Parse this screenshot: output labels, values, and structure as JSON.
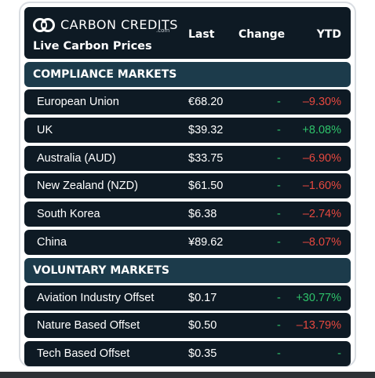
{
  "brand": {
    "logo_text": "CARBON CREDITS",
    "logo_suffix": ".com",
    "subtitle": "Live Carbon Prices"
  },
  "columns": {
    "last": "Last",
    "change": "Change",
    "ytd": "YTD"
  },
  "sections": [
    {
      "title": "COMPLIANCE MARKETS",
      "rows": [
        {
          "name": "European Union",
          "last": "€68.20",
          "change": "-",
          "ytd": "–9.30%",
          "trend": "down"
        },
        {
          "name": "UK",
          "last": "$39.32",
          "change": "-",
          "ytd": "+8.08%",
          "trend": "up"
        },
        {
          "name": "Australia (AUD)",
          "last": "$33.75",
          "change": "-",
          "ytd": "–6.90%",
          "trend": "down"
        },
        {
          "name": "New Zealand (NZD)",
          "last": "$61.50",
          "change": "-",
          "ytd": "–1.60%",
          "trend": "down"
        },
        {
          "name": "South Korea",
          "last": "$6.38",
          "change": "-",
          "ytd": "–2.74%",
          "trend": "down"
        },
        {
          "name": "China",
          "last": "¥89.62",
          "change": "-",
          "ytd": "–8.07%",
          "trend": "down"
        }
      ]
    },
    {
      "title": "VOLUNTARY MARKETS",
      "rows": [
        {
          "name": "Aviation Industry Offset",
          "last": "$0.17",
          "change": "-",
          "ytd": "+30.77%",
          "trend": "up"
        },
        {
          "name": "Nature Based Offset",
          "last": "$0.50",
          "change": "-",
          "ytd": "–13.79%",
          "trend": "down"
        },
        {
          "name": "Tech Based Offset",
          "last": "$0.35",
          "change": "-",
          "ytd": "-",
          "trend": "flat"
        }
      ]
    }
  ],
  "colors": {
    "panel": "#0e1a24",
    "section": "#1c3b4b",
    "positive": "#2ec26a",
    "negative": "#e5483f"
  }
}
